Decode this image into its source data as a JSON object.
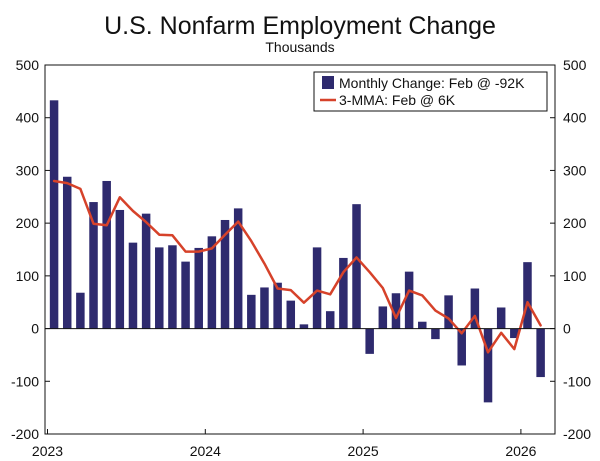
{
  "chart_data": {
    "type": "bar",
    "title": "U.S. Nonfarm Employment Change",
    "subtitle": "Thousands",
    "ylim": [
      -200,
      500
    ],
    "yticks": [
      -200,
      -100,
      0,
      100,
      200,
      300,
      400,
      500
    ],
    "ytick_labels": [
      "-200",
      "-100",
      "0",
      "100",
      "200",
      "300",
      "400",
      "500"
    ],
    "xtick_labels": [
      "2023",
      "2024",
      "2025",
      "2026"
    ],
    "categories": [
      "Jan 2023",
      "Feb 2023",
      "Mar 2023",
      "Apr 2023",
      "May 2023",
      "Jun 2023",
      "Jul 2023",
      "Aug 2023",
      "Sep 2023",
      "Oct 2023",
      "Nov 2023",
      "Dec 2023",
      "Jan 2024",
      "Feb 2024",
      "Mar 2024",
      "Apr 2024",
      "May 2024",
      "Jun 2024",
      "Jul 2024",
      "Aug 2024",
      "Sep 2024",
      "Oct 2024",
      "Nov 2024",
      "Dec 2024",
      "Jan 2025",
      "Feb 2025",
      "Mar 2025",
      "Apr 2025",
      "May 2025",
      "Jun 2025",
      "Jul 2025",
      "Aug 2025",
      "Sep 2025",
      "Oct 2025",
      "Nov 2025",
      "Dec 2025",
      "Jan 2026",
      "Feb 2026"
    ],
    "series": [
      {
        "name": "Monthly Change: Feb @ -92K",
        "type": "bar",
        "color": "#2e2a6e",
        "values": [
          433,
          288,
          68,
          240,
          280,
          225,
          163,
          218,
          154,
          158,
          127,
          153,
          175,
          206,
          228,
          64,
          78,
          87,
          53,
          8,
          154,
          33,
          134,
          236,
          -48,
          42,
          67,
          108,
          13,
          -20,
          63,
          -70,
          76,
          -140,
          40,
          -18,
          126,
          -92
        ]
      },
      {
        "name": "3-MMA: Feb @ 6K",
        "type": "line",
        "color": "#d6422a",
        "values": [
          280,
          276,
          265,
          199,
          196,
          249,
          223,
          202,
          178,
          177,
          146,
          146,
          152,
          178,
          203,
          166,
          123,
          76,
          73,
          49,
          72,
          65,
          107,
          135,
          107,
          77,
          20,
          72,
          63,
          34,
          19,
          -9,
          24,
          -45,
          -8,
          -39,
          50,
          6
        ]
      }
    ],
    "legend": {
      "position": "top-right"
    },
    "grid": false
  }
}
